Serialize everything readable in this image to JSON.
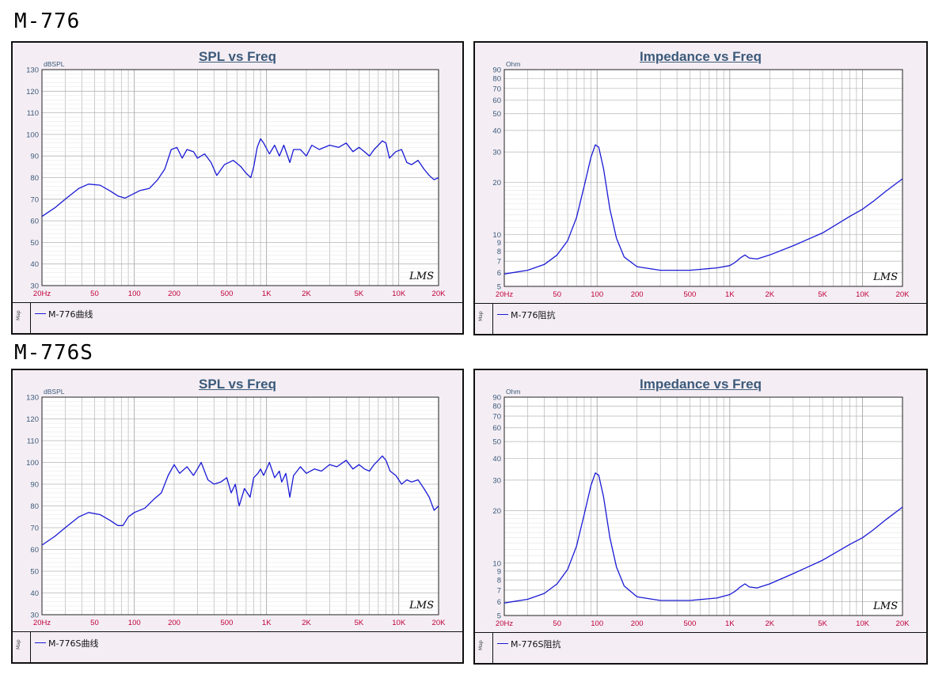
{
  "sections": [
    {
      "title": "M-776"
    },
    {
      "title": "M-776S"
    }
  ],
  "colors": {
    "curve": "#1a1ad6",
    "grid": "#b5b5b5",
    "tick_x": "#c0003a",
    "axis_label": "#3c5a7a",
    "panel_bg": "#f4eef4"
  },
  "chart_data": [
    {
      "type": "line",
      "title": "SPL vs Freq",
      "ylabel": "dBSPL",
      "log_x": true,
      "xlim": [
        20,
        20000
      ],
      "ylim": [
        30,
        130
      ],
      "x_ticks": [
        "20Hz",
        "50",
        "100",
        "200",
        "500",
        "1K",
        "2K",
        "5K",
        "10K",
        "20K"
      ],
      "y_ticks": [
        "30",
        "40",
        "50",
        "60",
        "70",
        "80",
        "90",
        "100",
        "110",
        "120",
        "130"
      ],
      "legend": "M-776曲线",
      "watermark": "LMS",
      "series": [
        {
          "name": "M-776曲线",
          "points": [
            [
              20,
              62
            ],
            [
              25,
              66
            ],
            [
              30,
              70
            ],
            [
              38,
              75
            ],
            [
              45,
              77
            ],
            [
              55,
              76.5
            ],
            [
              65,
              74
            ],
            [
              75,
              71.5
            ],
            [
              85,
              70.5
            ],
            [
              95,
              72
            ],
            [
              110,
              74
            ],
            [
              130,
              75
            ],
            [
              150,
              79
            ],
            [
              170,
              84
            ],
            [
              190,
              93
            ],
            [
              210,
              94
            ],
            [
              230,
              89
            ],
            [
              250,
              93
            ],
            [
              280,
              92
            ],
            [
              300,
              89
            ],
            [
              340,
              91
            ],
            [
              380,
              87
            ],
            [
              420,
              81
            ],
            [
              480,
              86
            ],
            [
              560,
              88
            ],
            [
              640,
              85
            ],
            [
              700,
              82
            ],
            [
              760,
              80
            ],
            [
              800,
              85
            ],
            [
              850,
              94
            ],
            [
              900,
              98
            ],
            [
              950,
              96
            ],
            [
              1050,
              91
            ],
            [
              1150,
              95
            ],
            [
              1250,
              90
            ],
            [
              1350,
              95
            ],
            [
              1500,
              87
            ],
            [
              1600,
              93
            ],
            [
              1800,
              93
            ],
            [
              2000,
              90
            ],
            [
              2200,
              95
            ],
            [
              2500,
              93
            ],
            [
              3000,
              95
            ],
            [
              3500,
              94
            ],
            [
              4000,
              96
            ],
            [
              4500,
              92
            ],
            [
              5000,
              94
            ],
            [
              5500,
              92
            ],
            [
              6000,
              90
            ],
            [
              6500,
              93
            ],
            [
              7000,
              95
            ],
            [
              7500,
              97
            ],
            [
              8000,
              96
            ],
            [
              8500,
              89
            ],
            [
              9500,
              92
            ],
            [
              10500,
              93
            ],
            [
              11500,
              87
            ],
            [
              12500,
              86
            ],
            [
              14000,
              88
            ],
            [
              15500,
              84
            ],
            [
              17000,
              81
            ],
            [
              18500,
              79
            ],
            [
              20000,
              80
            ]
          ]
        }
      ]
    },
    {
      "type": "line",
      "title": "Impedance vs Freq",
      "ylabel": "Ohm",
      "log_x": true,
      "log_y": true,
      "xlim": [
        20,
        20000
      ],
      "ylim": [
        5,
        90
      ],
      "x_ticks": [
        "20Hz",
        "50",
        "100",
        "200",
        "500",
        "1K",
        "2K",
        "5K",
        "10K",
        "20K"
      ],
      "y_ticks": [
        "5",
        "6",
        "7",
        "8",
        "9",
        "10",
        "20",
        "30",
        "40",
        "50",
        "60",
        "70",
        "80",
        "90"
      ],
      "legend": "M-776阻抗",
      "watermark": "LMS",
      "series": [
        {
          "name": "M-776阻抗",
          "points": [
            [
              20,
              5.9
            ],
            [
              30,
              6.2
            ],
            [
              40,
              6.7
            ],
            [
              50,
              7.6
            ],
            [
              60,
              9.2
            ],
            [
              70,
              12.5
            ],
            [
              80,
              19
            ],
            [
              90,
              28
            ],
            [
              97,
              33
            ],
            [
              103,
              32
            ],
            [
              112,
              24
            ],
            [
              125,
              14
            ],
            [
              140,
              9.5
            ],
            [
              160,
              7.4
            ],
            [
              200,
              6.5
            ],
            [
              300,
              6.2
            ],
            [
              500,
              6.2
            ],
            [
              800,
              6.4
            ],
            [
              1000,
              6.6
            ],
            [
              1100,
              6.9
            ],
            [
              1200,
              7.3
            ],
            [
              1300,
              7.6
            ],
            [
              1400,
              7.3
            ],
            [
              1600,
              7.2
            ],
            [
              2000,
              7.6
            ],
            [
              3000,
              8.6
            ],
            [
              5000,
              10.2
            ],
            [
              8000,
              12.7
            ],
            [
              10000,
              14
            ],
            [
              12000,
              15.5
            ],
            [
              15000,
              17.8
            ],
            [
              20000,
              21
            ]
          ]
        }
      ]
    },
    {
      "type": "line",
      "title": "SPL vs Freq",
      "ylabel": "dBSPL",
      "log_x": true,
      "xlim": [
        20,
        20000
      ],
      "ylim": [
        30,
        130
      ],
      "x_ticks": [
        "20Hz",
        "50",
        "100",
        "200",
        "500",
        "1K",
        "2K",
        "5K",
        "10K",
        "20K"
      ],
      "y_ticks": [
        "30",
        "40",
        "50",
        "60",
        "70",
        "80",
        "90",
        "100",
        "110",
        "120",
        "130"
      ],
      "legend": "M-776S曲线",
      "watermark": "LMS",
      "series": [
        {
          "name": "M-776S曲线",
          "points": [
            [
              20,
              62
            ],
            [
              25,
              66
            ],
            [
              30,
              70
            ],
            [
              38,
              75
            ],
            [
              45,
              77
            ],
            [
              55,
              76
            ],
            [
              65,
              73.5
            ],
            [
              75,
              71
            ],
            [
              82,
              71
            ],
            [
              90,
              75
            ],
            [
              100,
              77
            ],
            [
              120,
              79
            ],
            [
              140,
              83
            ],
            [
              160,
              86
            ],
            [
              180,
              94
            ],
            [
              200,
              99
            ],
            [
              220,
              95
            ],
            [
              250,
              98
            ],
            [
              280,
              94
            ],
            [
              300,
              97
            ],
            [
              320,
              100
            ],
            [
              360,
              92
            ],
            [
              400,
              90
            ],
            [
              450,
              91
            ],
            [
              500,
              93
            ],
            [
              540,
              86
            ],
            [
              580,
              90
            ],
            [
              620,
              80
            ],
            [
              680,
              88
            ],
            [
              750,
              84
            ],
            [
              800,
              93
            ],
            [
              860,
              95
            ],
            [
              900,
              97
            ],
            [
              950,
              94
            ],
            [
              1050,
              100
            ],
            [
              1150,
              93
            ],
            [
              1250,
              96
            ],
            [
              1300,
              91
            ],
            [
              1400,
              95
            ],
            [
              1500,
              84
            ],
            [
              1600,
              94
            ],
            [
              1700,
              96
            ],
            [
              1800,
              98
            ],
            [
              2000,
              95
            ],
            [
              2300,
              97
            ],
            [
              2600,
              96
            ],
            [
              3000,
              99
            ],
            [
              3400,
              98
            ],
            [
              4000,
              101
            ],
            [
              4500,
              97
            ],
            [
              5000,
              99
            ],
            [
              5500,
              97
            ],
            [
              6000,
              96
            ],
            [
              6500,
              99
            ],
            [
              7000,
              101
            ],
            [
              7500,
              103
            ],
            [
              8000,
              101
            ],
            [
              8600,
              96
            ],
            [
              9500,
              94
            ],
            [
              10500,
              90
            ],
            [
              11500,
              92
            ],
            [
              12500,
              91
            ],
            [
              14000,
              92
            ],
            [
              15500,
              88
            ],
            [
              17000,
              84
            ],
            [
              18500,
              78
            ],
            [
              20000,
              80
            ]
          ]
        }
      ]
    },
    {
      "type": "line",
      "title": "Impedance vs Freq",
      "ylabel": "Ohm",
      "log_x": true,
      "log_y": true,
      "xlim": [
        20,
        20000
      ],
      "ylim": [
        5,
        90
      ],
      "x_ticks": [
        "20Hz",
        "50",
        "100",
        "200",
        "500",
        "1K",
        "2K",
        "5K",
        "10K",
        "20K"
      ],
      "y_ticks": [
        "5",
        "6",
        "7",
        "8",
        "9",
        "10",
        "20",
        "30",
        "40",
        "50",
        "60",
        "70",
        "80",
        "90"
      ],
      "legend": "M-776S阻抗",
      "watermark": "LMS",
      "series": [
        {
          "name": "M-776S阻抗",
          "points": [
            [
              20,
              5.9
            ],
            [
              30,
              6.2
            ],
            [
              40,
              6.7
            ],
            [
              50,
              7.6
            ],
            [
              60,
              9.2
            ],
            [
              70,
              12.5
            ],
            [
              80,
              19
            ],
            [
              90,
              28
            ],
            [
              97,
              33
            ],
            [
              103,
              32
            ],
            [
              112,
              24
            ],
            [
              125,
              14
            ],
            [
              140,
              9.5
            ],
            [
              160,
              7.4
            ],
            [
              200,
              6.4
            ],
            [
              300,
              6.1
            ],
            [
              500,
              6.1
            ],
            [
              800,
              6.3
            ],
            [
              1000,
              6.6
            ],
            [
              1100,
              6.9
            ],
            [
              1200,
              7.3
            ],
            [
              1300,
              7.6
            ],
            [
              1400,
              7.3
            ],
            [
              1600,
              7.2
            ],
            [
              2000,
              7.6
            ],
            [
              3000,
              8.7
            ],
            [
              5000,
              10.4
            ],
            [
              8000,
              12.8
            ],
            [
              10000,
              14
            ],
            [
              12000,
              15.5
            ],
            [
              15000,
              17.8
            ],
            [
              20000,
              21
            ]
          ]
        }
      ]
    }
  ]
}
